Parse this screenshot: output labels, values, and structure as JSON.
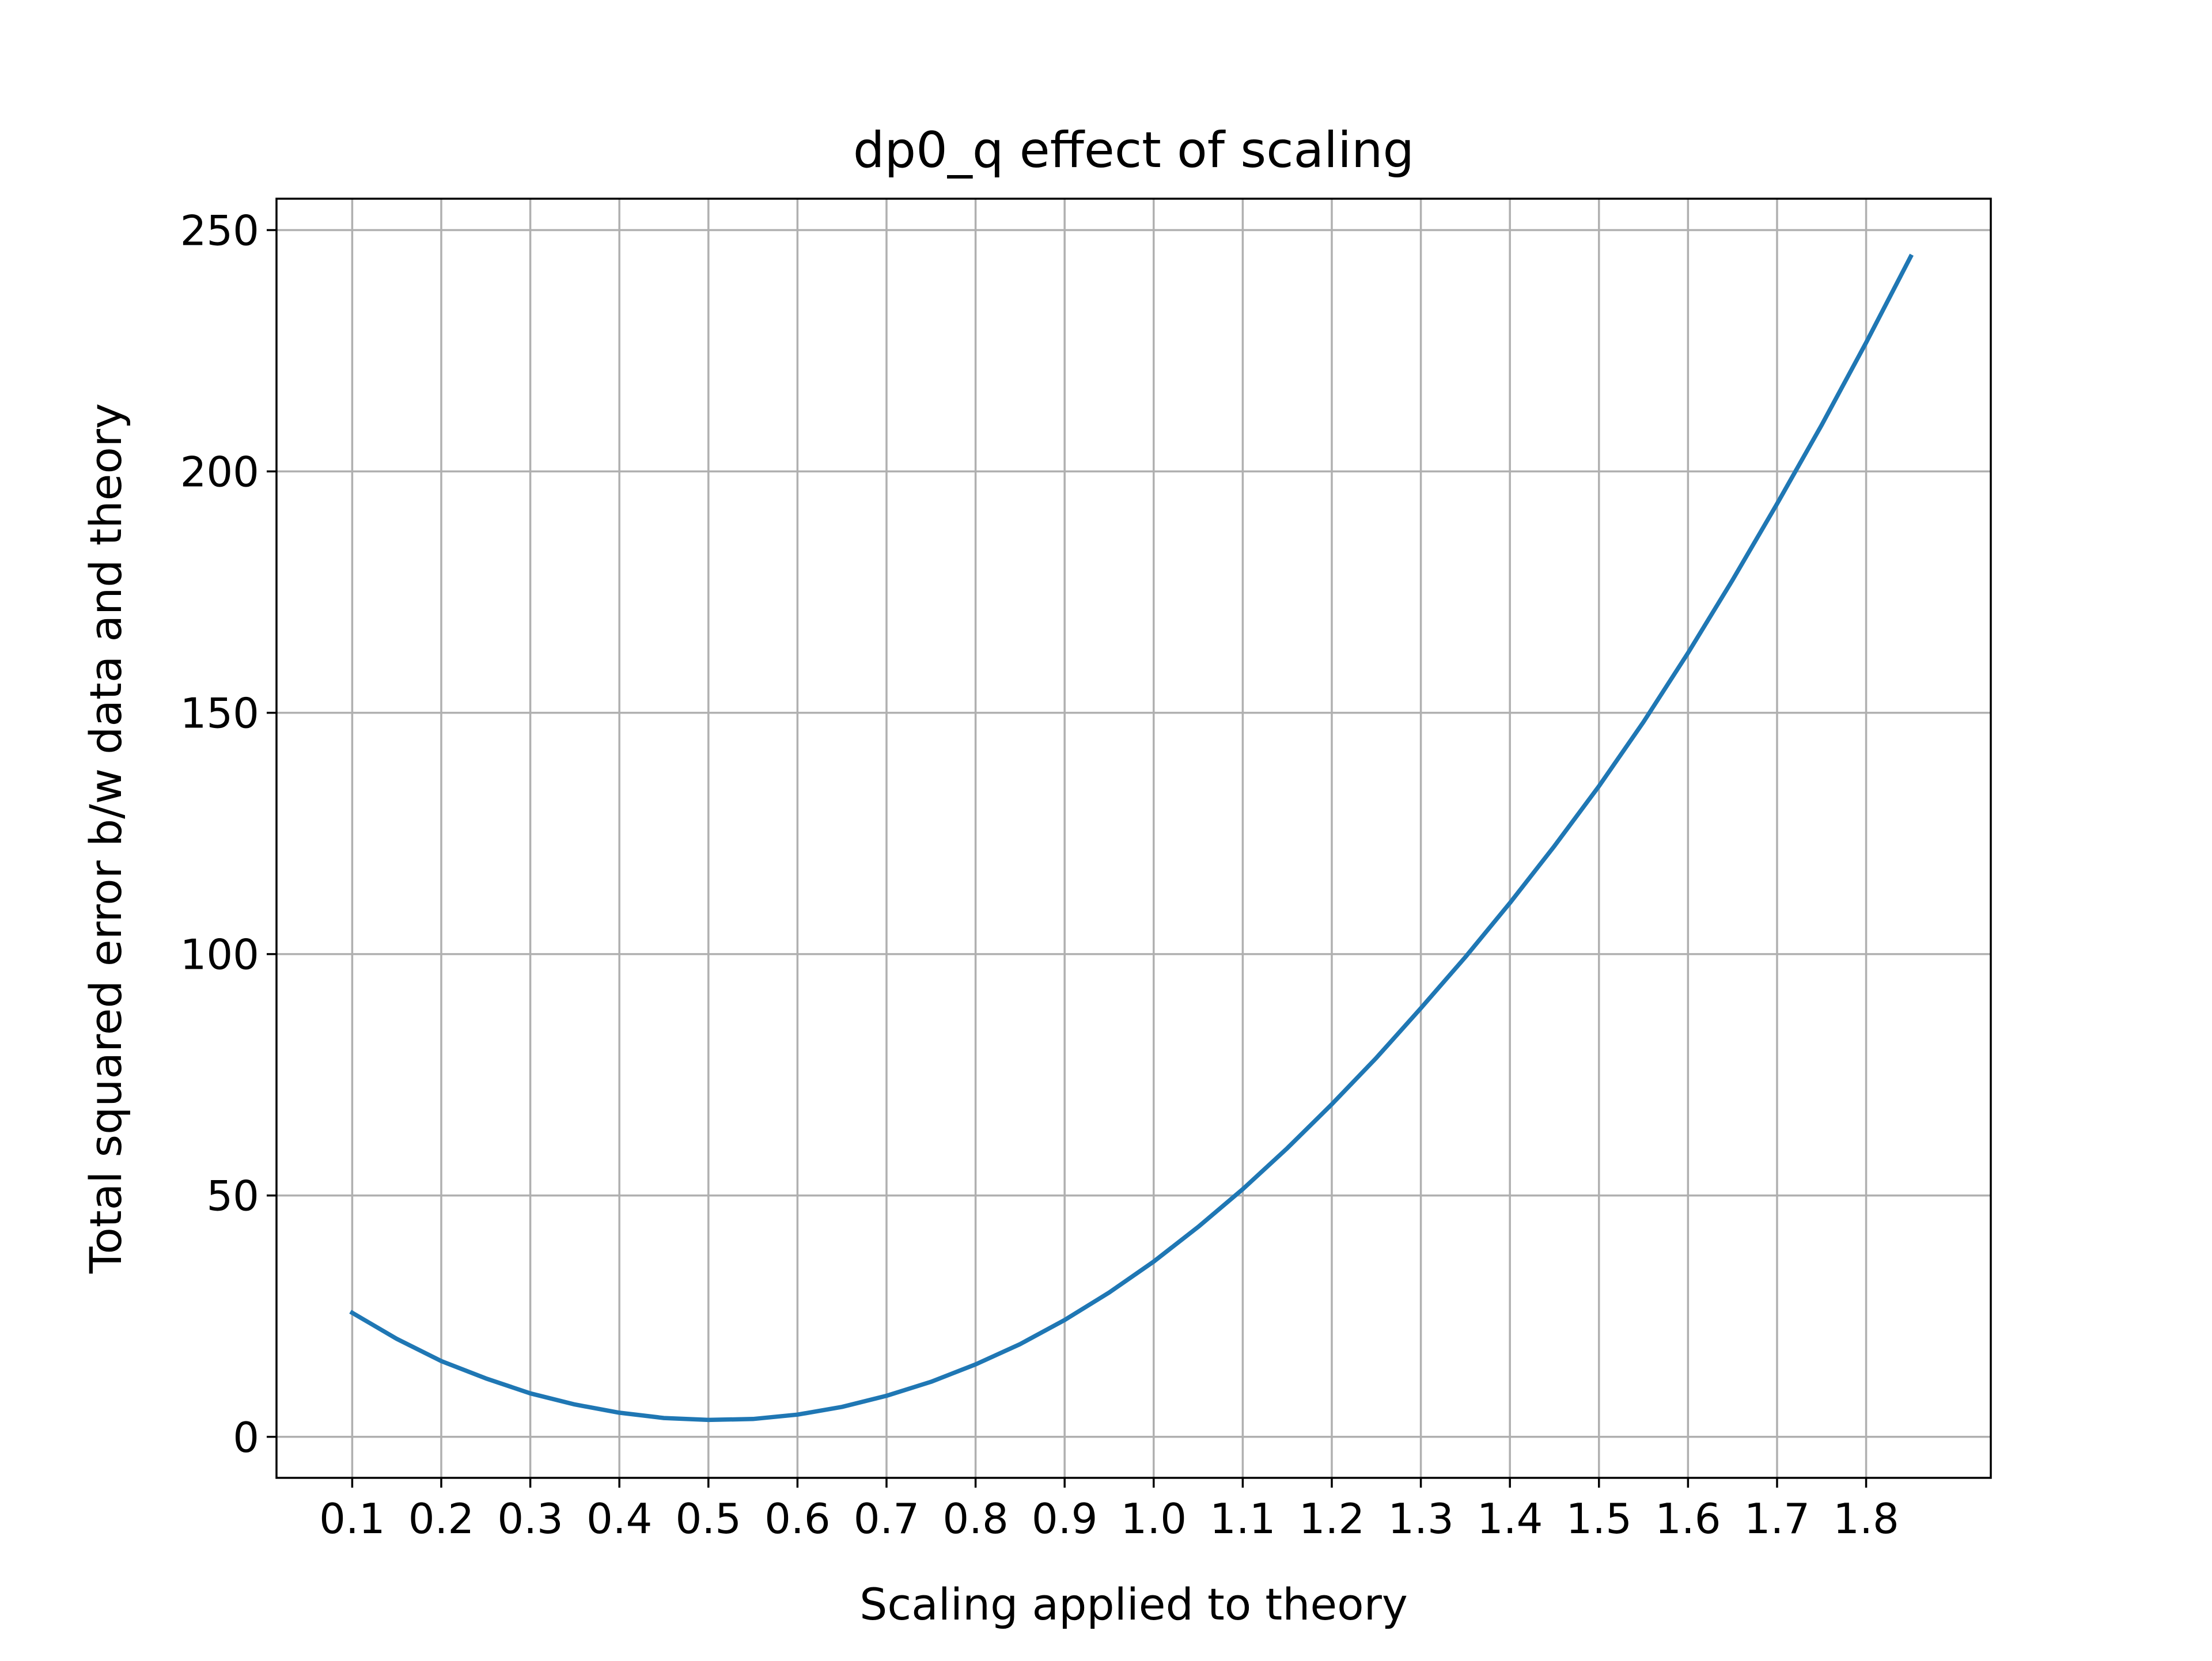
{
  "chart_data": {
    "type": "line",
    "title": "dp0_q effect of scaling",
    "xlabel": "Scaling applied to theory",
    "ylabel": "Total squared error b/w data and theory",
    "xlim": [
      0.015,
      1.94
    ],
    "ylim": [
      -8.5,
      256.5
    ],
    "grid": true,
    "line_color": "#1f77b4",
    "grid_color": "#b0b0b0",
    "xticks": [
      0.1,
      0.2,
      0.3,
      0.4,
      0.5,
      0.6,
      0.7,
      0.8,
      0.9,
      1.0,
      1.1,
      1.2,
      1.3,
      1.4,
      1.5,
      1.6,
      1.7,
      1.8
    ],
    "xtick_labels": [
      "0.1",
      "0.2",
      "0.3",
      "0.4",
      "0.5",
      "0.6",
      "0.7",
      "0.8",
      "0.9",
      "1.0",
      "1.1",
      "1.2",
      "1.3",
      "1.4",
      "1.5",
      "1.6",
      "1.7",
      "1.8"
    ],
    "yticks": [
      0,
      50,
      100,
      150,
      200,
      250
    ],
    "ytick_labels": [
      "0",
      "50",
      "100",
      "150",
      "200",
      "250"
    ],
    "series": [
      {
        "x": [
          0.1,
          0.15,
          0.2,
          0.25,
          0.3,
          0.35,
          0.4,
          0.45,
          0.5,
          0.55,
          0.6,
          0.65,
          0.7,
          0.75,
          0.8,
          0.85,
          0.9,
          0.95,
          1.0,
          1.05,
          1.1,
          1.15,
          1.2,
          1.25,
          1.3,
          1.35,
          1.4,
          1.45,
          1.5,
          1.55,
          1.6,
          1.65,
          1.7,
          1.75,
          1.8,
          1.85
        ],
        "values": [
          25.7,
          20.3,
          15.7,
          12.1,
          9.0,
          6.7,
          5.0,
          3.9,
          3.5,
          3.7,
          4.6,
          6.2,
          8.5,
          11.4,
          15.0,
          19.2,
          24.2,
          29.9,
          36.3,
          43.5,
          51.3,
          59.8,
          68.9,
          78.5,
          88.8,
          99.4,
          110.6,
          122.4,
          134.8,
          148.1,
          162.4,
          177.5,
          193.3,
          209.6,
          226.7,
          244.5
        ]
      }
    ]
  }
}
